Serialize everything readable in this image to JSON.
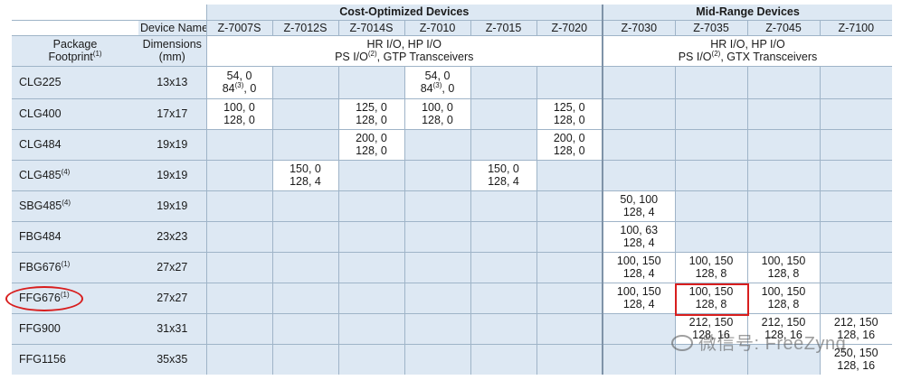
{
  "header": {
    "device_name_label": "Device Name",
    "package_label": "Package",
    "footprint_label": "Footprint",
    "footprint_note": "(1)",
    "dimensions_label": "Dimensions",
    "dimensions_unit": "(mm)",
    "group_cost": "Cost-Optimized Devices",
    "group_mid": "Mid-Range Devices",
    "cost_io_line1": "HR I/O, HP I/O",
    "cost_io_line2_a": "PS I/O",
    "cost_io_line2_note": "(2)",
    "cost_io_line2_b": ", GTP Transceivers",
    "mid_io_line1": "HR I/O, HP I/O",
    "mid_io_line2_a": "PS I/O",
    "mid_io_line2_note": "(2)",
    "mid_io_line2_b": ", GTX Transceivers"
  },
  "devices": [
    "Z-7007S",
    "Z-7012S",
    "Z-7014S",
    "Z-7010",
    "Z-7015",
    "Z-7020",
    "Z-7030",
    "Z-7035",
    "Z-7045",
    "Z-7100"
  ],
  "rows": [
    {
      "pkg": "CLG225",
      "note": "",
      "dim": "13x13",
      "c": [
        [
          "54,  0",
          "84",
          "(3)",
          ", 0"
        ],
        [],
        [],
        [
          "54, 0",
          "84",
          "(3)",
          ", 0"
        ],
        [],
        [],
        [],
        [],
        [],
        []
      ]
    },
    {
      "pkg": "CLG400",
      "note": "",
      "dim": "17x17",
      "c": [
        [
          "100, 0",
          "128, 0"
        ],
        [],
        [
          "125, 0",
          "128, 0"
        ],
        [
          "100, 0",
          "128, 0"
        ],
        [],
        [
          "125, 0",
          "128, 0"
        ],
        [],
        [],
        [],
        []
      ]
    },
    {
      "pkg": "CLG484",
      "note": "",
      "dim": "19x19",
      "c": [
        [],
        [],
        [
          "200, 0",
          "128, 0"
        ],
        [],
        [],
        [
          "200, 0",
          "128, 0"
        ],
        [],
        [],
        [],
        []
      ]
    },
    {
      "pkg": "CLG485",
      "note": "(4)",
      "dim": "19x19",
      "c": [
        [],
        [
          "150, 0",
          "128, 4"
        ],
        [],
        [],
        [
          "150, 0",
          "128, 4"
        ],
        [],
        [],
        [],
        [],
        []
      ]
    },
    {
      "pkg": "SBG485",
      "note": "(4)",
      "dim": "19x19",
      "c": [
        [],
        [],
        [],
        [],
        [],
        [],
        [
          "50, 100",
          "128, 4"
        ],
        [],
        [],
        []
      ]
    },
    {
      "pkg": "FBG484",
      "note": "",
      "dim": "23x23",
      "c": [
        [],
        [],
        [],
        [],
        [],
        [],
        [
          "100, 63",
          "128, 4"
        ],
        [],
        [],
        []
      ]
    },
    {
      "pkg": "FBG676",
      "note": "(1)",
      "dim": "27x27",
      "c": [
        [],
        [],
        [],
        [],
        [],
        [],
        [
          "100, 150",
          "128, 4"
        ],
        [
          "100, 150",
          "128, 8"
        ],
        [
          "100, 150",
          "128, 8"
        ],
        []
      ]
    },
    {
      "pkg": "FFG676",
      "note": "(1)",
      "dim": "27x27",
      "c": [
        [],
        [],
        [],
        [],
        [],
        [],
        [
          "100, 150",
          "128, 4"
        ],
        [
          "100, 150",
          "128, 8"
        ],
        [
          "100, 150",
          "128, 8"
        ],
        []
      ]
    },
    {
      "pkg": "FFG900",
      "note": "",
      "dim": "31x31",
      "c": [
        [],
        [],
        [],
        [],
        [],
        [],
        [],
        [
          "212, 150",
          "128, 16"
        ],
        [
          "212, 150",
          "128, 16"
        ],
        [
          "212, 150",
          "128, 16"
        ]
      ]
    },
    {
      "pkg": "FFG1156",
      "note": "",
      "dim": "35x35",
      "c": [
        [],
        [],
        [],
        [],
        [],
        [],
        [],
        [],
        [],
        [
          "250, 150",
          "128, 16"
        ]
      ]
    }
  ],
  "watermark": "微信号: FreeZynq",
  "colors": {
    "row_blue": "#dde8f3",
    "grid": "#9fb4c8",
    "highlight": "#d81e1e"
  }
}
